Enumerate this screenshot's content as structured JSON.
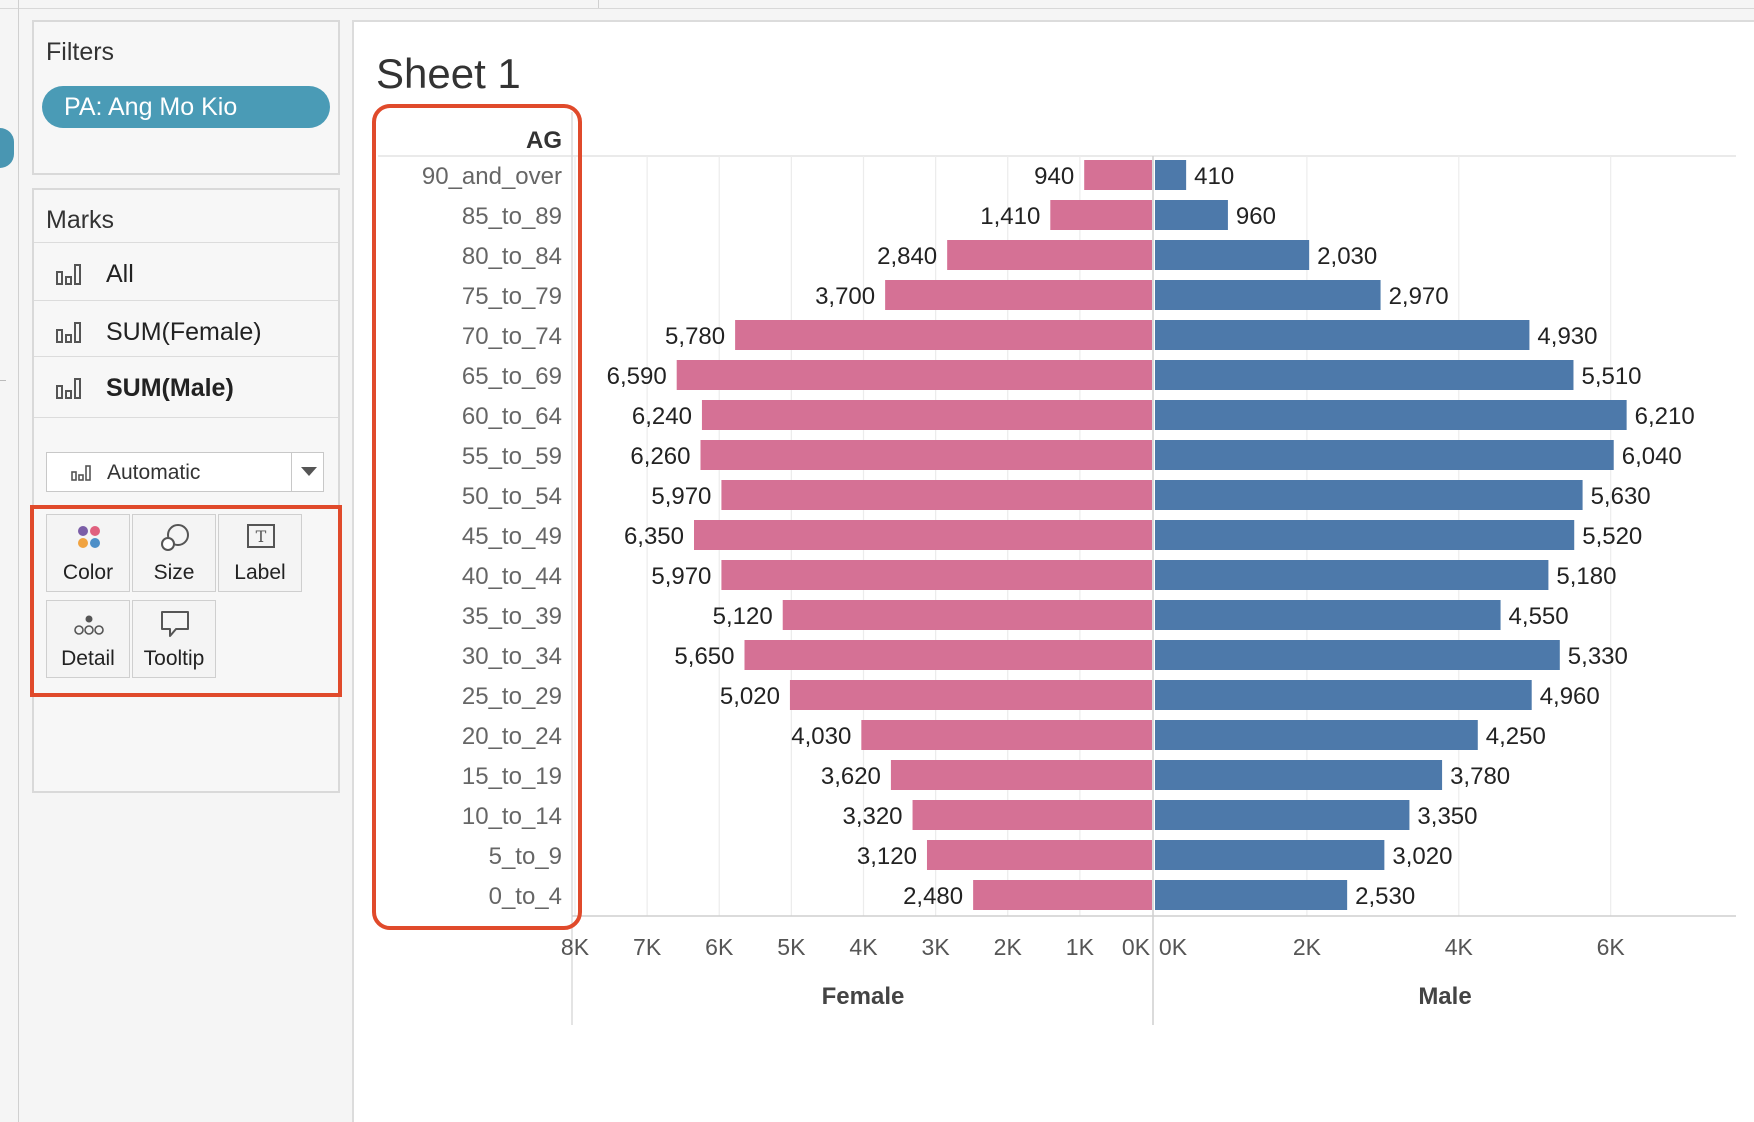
{
  "filters": {
    "title": "Filters",
    "pill": "PA: Ang Mo Kio"
  },
  "marks": {
    "title": "Marks",
    "rows": [
      {
        "label": "All",
        "icon": "bar-chart-icon"
      },
      {
        "label": "SUM(Female)",
        "icon": "bar-chart-icon"
      },
      {
        "label": "SUM(Male)",
        "icon": "bar-chart-icon"
      }
    ],
    "mark_type": "Automatic",
    "buttons": [
      {
        "label": "Color",
        "icon": "color-dots-icon"
      },
      {
        "label": "Size",
        "icon": "size-circles-icon"
      },
      {
        "label": "Label",
        "icon": "text-box-icon"
      },
      {
        "label": "Detail",
        "icon": "detail-dots-icon"
      },
      {
        "label": "Tooltip",
        "icon": "speech-bubble-icon"
      }
    ]
  },
  "sheet": {
    "title": "Sheet 1"
  },
  "colors": {
    "female": "#d57195",
    "male": "#4d79aa",
    "highlight": "#e04a2b",
    "filter_pill": "#4a9bb6"
  },
  "chart_data": {
    "type": "bar",
    "orientation": "horizontal",
    "row_header": "AG",
    "categories": [
      "90_and_over",
      "85_to_89",
      "80_to_84",
      "75_to_79",
      "70_to_74",
      "65_to_69",
      "60_to_64",
      "55_to_59",
      "50_to_54",
      "45_to_49",
      "40_to_44",
      "35_to_39",
      "30_to_34",
      "25_to_29",
      "20_to_24",
      "15_to_19",
      "10_to_14",
      "5_to_9",
      "0_to_4"
    ],
    "series": [
      {
        "name": "Female",
        "values": [
          940,
          1410,
          2840,
          3700,
          5780,
          6590,
          6240,
          6260,
          5970,
          6350,
          5970,
          5120,
          5650,
          5020,
          4030,
          3620,
          3320,
          3120,
          2480
        ],
        "labels": [
          "940",
          "1,410",
          "2,840",
          "3,700",
          "5,780",
          "6,590",
          "6,240",
          "6,260",
          "5,970",
          "6,350",
          "5,970",
          "5,120",
          "5,650",
          "5,020",
          "4,030",
          "3,620",
          "3,320",
          "3,120",
          "2,480"
        ]
      },
      {
        "name": "Male",
        "values": [
          410,
          960,
          2030,
          2970,
          4930,
          5510,
          6210,
          6040,
          5630,
          5520,
          5180,
          4550,
          5330,
          4960,
          4250,
          3780,
          3350,
          3020,
          2530
        ],
        "labels": [
          "410",
          "960",
          "2,030",
          "2,970",
          "4,930",
          "5,510",
          "6,210",
          "6,040",
          "5,630",
          "5,520",
          "5,180",
          "4,550",
          "5,330",
          "4,960",
          "4,250",
          "3,780",
          "3,350",
          "3,020",
          "2,530"
        ]
      }
    ],
    "female_axis": {
      "label": "Female",
      "range": [
        0,
        8000
      ],
      "reversed": true,
      "ticks": [
        8000,
        7000,
        6000,
        5000,
        4000,
        3000,
        2000,
        1000,
        0
      ],
      "tick_labels": [
        "8K",
        "7K",
        "6K",
        "5K",
        "4K",
        "3K",
        "2K",
        "1K",
        "0K"
      ]
    },
    "male_axis": {
      "label": "Male",
      "range": [
        0,
        7650
      ],
      "ticks": [
        0,
        2000,
        4000,
        6000
      ],
      "tick_labels": [
        "0K",
        "2K",
        "4K",
        "6K"
      ]
    },
    "grid": true
  }
}
